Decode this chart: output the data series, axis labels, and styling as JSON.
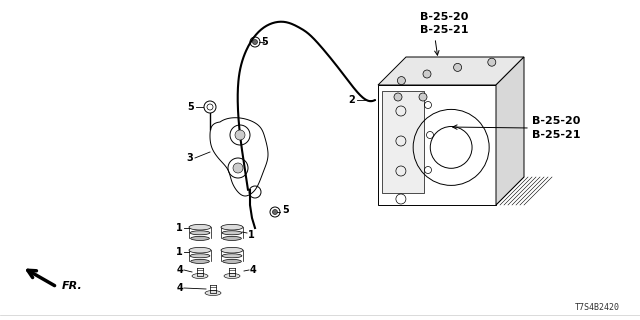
{
  "bg_color": "#ffffff",
  "line_color": "#000000",
  "diagram_id": "T7S4B2420",
  "top_ref": "B-25-20\nB-25-21",
  "right_ref": "B-25-20\nB-25-21"
}
